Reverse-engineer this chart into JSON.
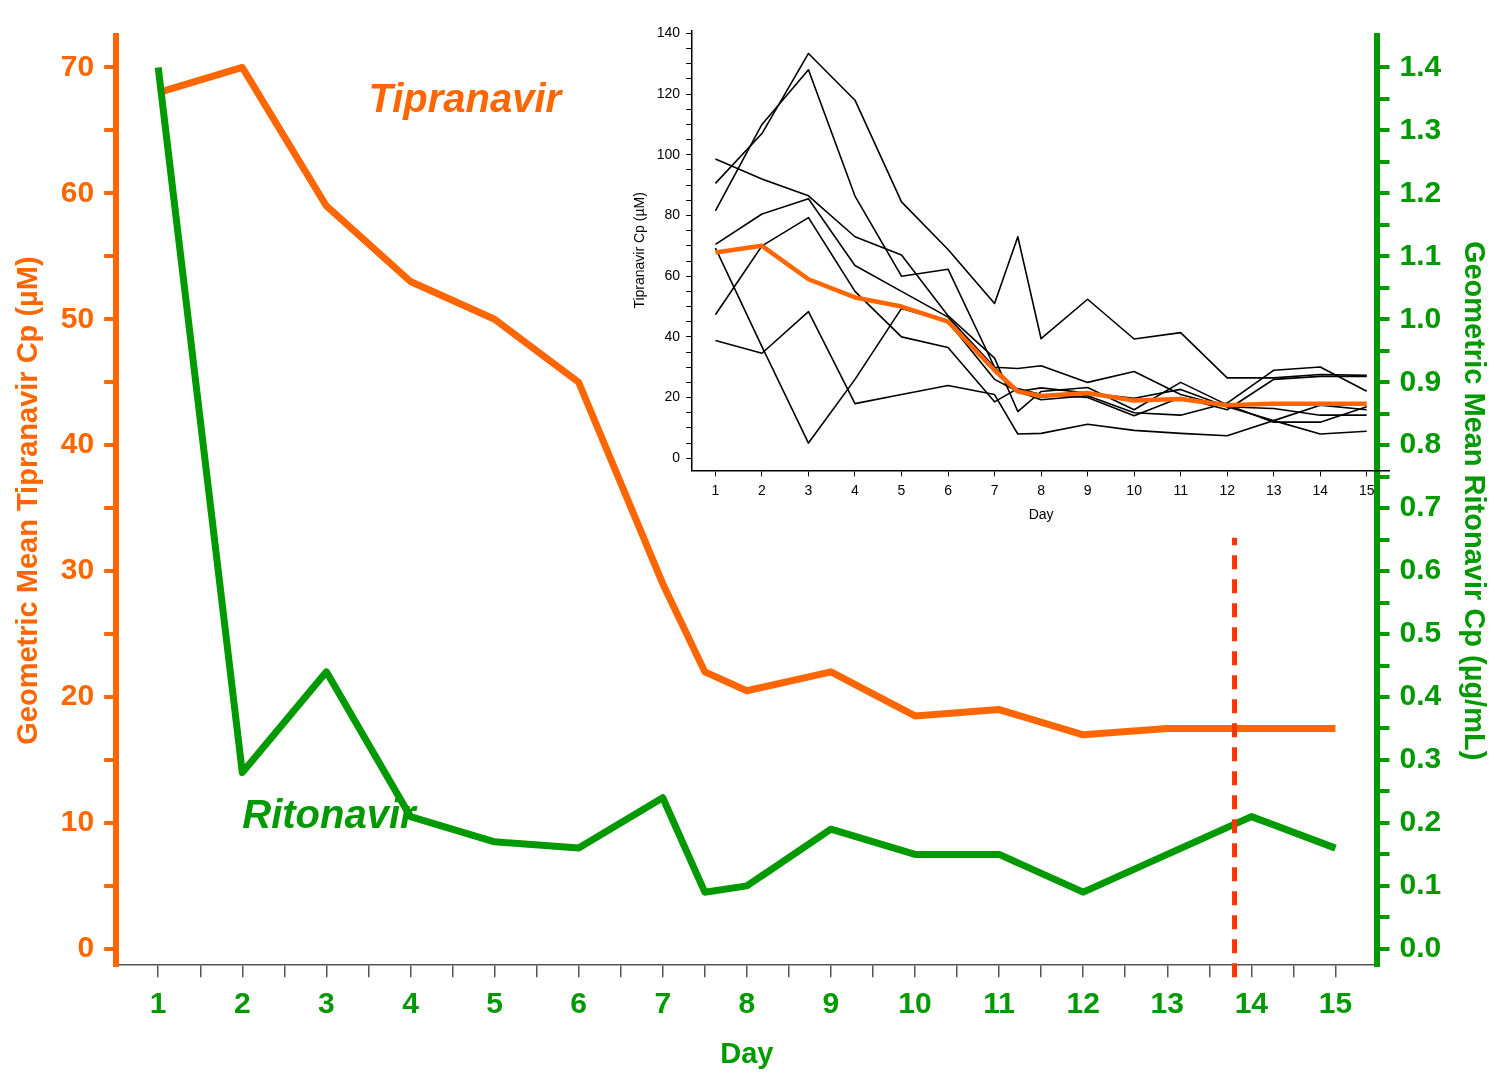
{
  "chart_data": [
    {
      "type": "line",
      "xlabel": "Day",
      "ylabel": "Geometric Mean Tipranavir Cp (µM)",
      "y2label": "Geometric Mean Ritonavir Cp (µg/mL)",
      "x": [
        1,
        2,
        3,
        4,
        5,
        6,
        7,
        7.5,
        8,
        9,
        10,
        11,
        12,
        13,
        14,
        15
      ],
      "series": [
        {
          "name": "Tipranavir",
          "color": "#ff6600",
          "values": [
            68,
            70,
            59,
            53,
            50,
            45,
            29,
            22,
            20.5,
            22,
            18.5,
            19,
            17,
            17.5,
            17.5,
            17.5
          ]
        },
        {
          "name": "Ritonavir",
          "color": "#009900",
          "axis": "y2",
          "values": [
            1.4,
            0.28,
            0.44,
            0.21,
            0.17,
            0.16,
            0.24,
            0.09,
            0.1,
            0.19,
            0.15,
            0.15,
            0.09,
            0.15,
            0.21,
            0.16
          ]
        }
      ],
      "xlim": [
        0.5,
        15.5
      ],
      "xticks": [
        1,
        {
          "value": 1.5,
          "label": null
        },
        2,
        {
          "value": 2.5,
          "label": null
        },
        3,
        {
          "value": 3.5,
          "label": null
        },
        4,
        {
          "value": 4.5,
          "label": null
        },
        5,
        {
          "value": 5.5,
          "label": null
        },
        6,
        {
          "value": 6.5,
          "label": null
        },
        7,
        {
          "value": 7.5,
          "label": null
        },
        8,
        {
          "value": 8.5,
          "label": null
        },
        9,
        {
          "value": 9.5,
          "label": null
        },
        10,
        {
          "value": 10.5,
          "label": null
        },
        11,
        {
          "value": 11.5,
          "label": null
        },
        12,
        {
          "value": 12.5,
          "label": null
        },
        13,
        {
          "value": 13.5,
          "label": null
        },
        14,
        {
          "value": 14.5,
          "label": null
        },
        15
      ],
      "ylim": [
        -1.3,
        72.5
      ],
      "yticks": [
        0,
        {
          "value": 5,
          "label": null
        },
        10,
        {
          "value": 15,
          "label": null
        },
        20,
        {
          "value": 25,
          "label": null
        },
        30,
        {
          "value": 35,
          "label": null
        },
        40,
        {
          "value": 45,
          "label": null
        },
        50,
        {
          "value": 55,
          "label": null
        },
        60,
        {
          "value": 65,
          "label": null
        },
        70
      ],
      "y2lim": [
        -0.026,
        1.45
      ],
      "y2ticks": [
        {
          "value": 0,
          "label": "0.0"
        },
        {
          "value": 0.05,
          "label": null
        },
        0.1,
        {
          "value": 0.15,
          "label": null
        },
        0.2,
        {
          "value": 0.25,
          "label": null
        },
        0.3,
        {
          "value": 0.35,
          "label": null
        },
        0.4,
        {
          "value": 0.45,
          "label": null
        },
        0.5,
        {
          "value": 0.55,
          "label": null
        },
        0.6,
        {
          "value": 0.65,
          "label": null
        },
        0.7,
        {
          "value": 0.75,
          "label": null
        },
        0.8,
        {
          "value": 0.85,
          "label": null
        },
        0.9,
        {
          "value": 0.95,
          "label": null
        },
        {
          "value": 1,
          "label": "1.0"
        },
        {
          "value": 1.05,
          "label": null
        },
        1.1,
        {
          "value": 1.15,
          "label": null
        },
        1.2,
        {
          "value": 1.25,
          "label": null
        },
        1.3,
        {
          "value": 1.35,
          "label": null
        },
        1.4
      ],
      "ref_lines": [
        {
          "axis": "x",
          "value": 13.8,
          "color": "#ff3300",
          "line_style": "dashed"
        }
      ],
      "legend": false,
      "grid": false,
      "marker": "none"
    },
    {
      "type": "line",
      "xlabel": "Day",
      "ylabel": "Tipranavir Cp (µM)",
      "x": [
        1,
        2,
        3,
        4,
        5,
        6,
        7,
        7.5,
        8,
        9,
        10,
        11,
        12,
        13,
        14,
        15
      ],
      "series": [
        {
          "color": "#000000",
          "values": [
            98.6,
            92,
            86.5,
            73,
            67,
            47,
            33,
            15.4,
            22,
            23.3,
            16,
            25,
            17.6,
            11.9,
            11.9,
            17
          ]
        },
        {
          "color": "#000000",
          "values": [
            90.6,
            107,
            133.4,
            118,
            84.5,
            68.8,
            51,
            73,
            39.4,
            52.4,
            39.3,
            41.4,
            26.5,
            26.5,
            27.6,
            27.3
          ]
        },
        {
          "color": "#000000",
          "values": [
            81.5,
            110,
            128,
            86.4,
            60,
            62.3,
            30,
            29.6,
            30.5,
            25,
            28.6,
            21,
            17,
            12.4,
            8,
            8.9
          ]
        },
        {
          "color": "#000000",
          "values": [
            70.5,
            80.5,
            85.5,
            63.5,
            55,
            46.5,
            30,
            22,
            23.2,
            21.5,
            19.8,
            22.7,
            17,
            16.4,
            14.2,
            14.2
          ]
        },
        {
          "color": "#000000",
          "values": [
            69.3,
            36.8,
            5,
            26,
            49.4,
            45,
            26,
            22,
            19.3,
            20.6,
            15,
            14.2,
            18.2,
            29,
            30.1,
            22.1
          ]
        },
        {
          "color": "#000000",
          "values": [
            47.3,
            70,
            79.3,
            55,
            40,
            36.5,
            18.6,
            23,
            21,
            20,
            14,
            20,
            16,
            26,
            27,
            27
          ]
        },
        {
          "color": "#000000",
          "values": [
            38.8,
            34.6,
            48.3,
            18,
            21,
            24,
            21,
            8,
            8.2,
            11.2,
            9.2,
            8.2,
            7.4,
            12.4,
            17.5,
            16
          ]
        },
        {
          "color": "#ff6600",
          "values": [
            67.8,
            70,
            59,
            53,
            50,
            45,
            29,
            22,
            20.5,
            21.5,
            19,
            19.5,
            17.5,
            18,
            18,
            18
          ]
        }
      ],
      "xlim": [
        0.5,
        15.5
      ],
      "xticks": [
        1,
        2,
        3,
        4,
        5,
        6,
        7,
        8,
        9,
        10,
        11,
        12,
        13,
        14,
        15
      ],
      "ylim": [
        -4,
        141
      ],
      "yticks": [
        0,
        {
          "value": 5,
          "label": null
        },
        {
          "value": 10,
          "label": null
        },
        {
          "value": 15,
          "label": null
        },
        20,
        {
          "value": 25,
          "label": null
        },
        {
          "value": 30,
          "label": null
        },
        {
          "value": 35,
          "label": null
        },
        40,
        {
          "value": 45,
          "label": null
        },
        {
          "value": 50,
          "label": null
        },
        {
          "value": 55,
          "label": null
        },
        60,
        {
          "value": 65,
          "label": null
        },
        {
          "value": 70,
          "label": null
        },
        {
          "value": 75,
          "label": null
        },
        80,
        {
          "value": 85,
          "label": null
        },
        {
          "value": 90,
          "label": null
        },
        {
          "value": 95,
          "label": null
        },
        100,
        {
          "value": 105,
          "label": null
        },
        {
          "value": 110,
          "label": null
        },
        {
          "value": 115,
          "label": null
        },
        120,
        {
          "value": 125,
          "label": null
        },
        {
          "value": 130,
          "label": null
        },
        {
          "value": 135,
          "label": null
        },
        140
      ],
      "legend": false,
      "grid": false,
      "marker": "none"
    }
  ]
}
